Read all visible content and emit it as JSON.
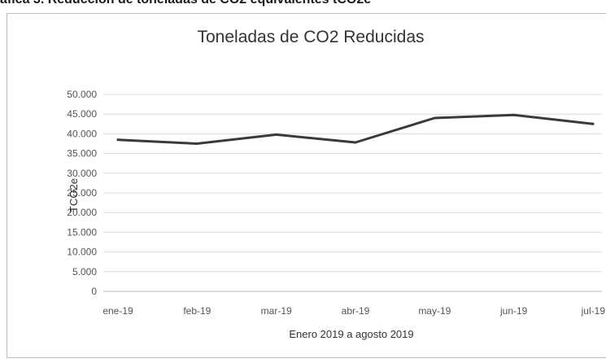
{
  "caption": "áfica 3. Reducción de toneladas de CO2 equivalentes  tCO2e",
  "chart_data": {
    "type": "line",
    "title": "Toneladas de CO2 Reducidas",
    "xlabel": "Enero 2019 a agosto 2019",
    "ylabel": "TCO2e",
    "categories": [
      "ene-19",
      "feb-19",
      "mar-19",
      "abr-19",
      "may-19",
      "jun-19",
      "jul-19"
    ],
    "series": [
      {
        "values": [
          38500,
          37500,
          39800,
          37800,
          44000,
          44800,
          42500
        ],
        "color": "#3a3a3a"
      }
    ],
    "ylim": [
      0,
      50000
    ],
    "yticks": [
      0,
      5000,
      10000,
      15000,
      20000,
      25000,
      30000,
      35000,
      40000,
      45000,
      50000
    ],
    "ytick_labels": [
      "0",
      "5.000",
      "10.000",
      "15.000",
      "20.000",
      "25.000",
      "30.000",
      "35.000",
      "40.000",
      "45.000",
      "50.000"
    ],
    "grid": true,
    "legend": "none"
  }
}
